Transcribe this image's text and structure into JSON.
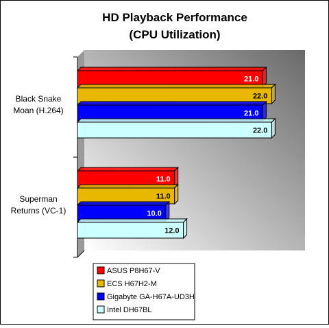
{
  "chart_data": {
    "type": "bar",
    "orientation": "horizontal",
    "title": [
      "HD Playback Performance",
      "(CPU Utilization)"
    ],
    "xlabel": "",
    "ylabel": "",
    "categories": [
      [
        "Black Snake",
        "Moan (H.264)"
      ],
      [
        "Superman",
        "Returns (VC-1)"
      ]
    ],
    "xlim": [
      0,
      25
    ],
    "grid": false,
    "legend_position": "bottom",
    "series": [
      {
        "name": "ASUS P8H67-V",
        "values": [
          21.0,
          11.0
        ],
        "color": "#ff0000",
        "label_color": "#ffffff"
      },
      {
        "name": "ECS H67H2-M",
        "values": [
          22.0,
          11.0
        ],
        "color": "#e8b800",
        "label_color": "#000000"
      },
      {
        "name": "Gigabyte GA-H67A-UD3H",
        "values": [
          21.0,
          10.0
        ],
        "color": "#0000ff",
        "label_color": "#ffffff"
      },
      {
        "name": "Intel DH67BL",
        "values": [
          22.0,
          12.0
        ],
        "color": "#ccffff",
        "label_color": "#000000"
      }
    ]
  }
}
